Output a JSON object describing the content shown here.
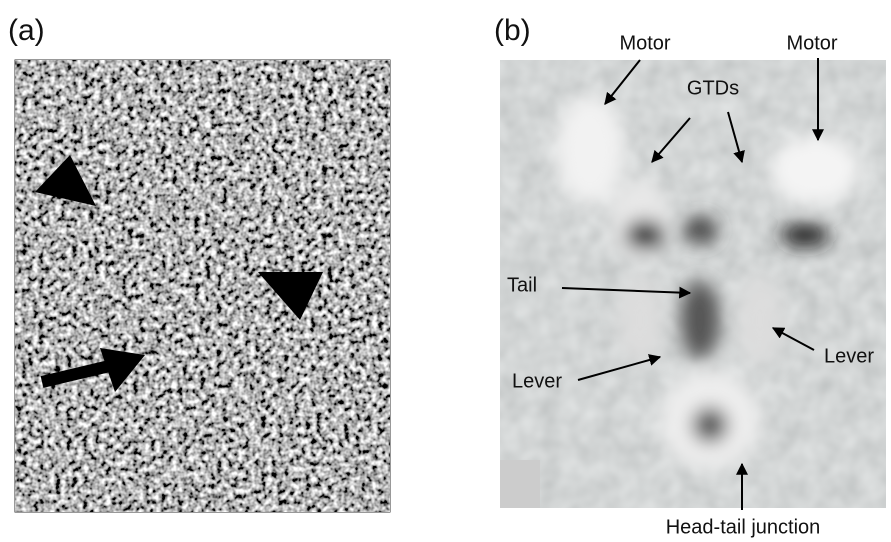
{
  "panels": [
    {
      "label": "(a)"
    },
    {
      "label": "(b)",
      "annotations": [
        "Motor",
        "Motor",
        "GTDs",
        "Tail",
        "Lever",
        "Lever",
        "Head-tail junction"
      ]
    }
  ]
}
